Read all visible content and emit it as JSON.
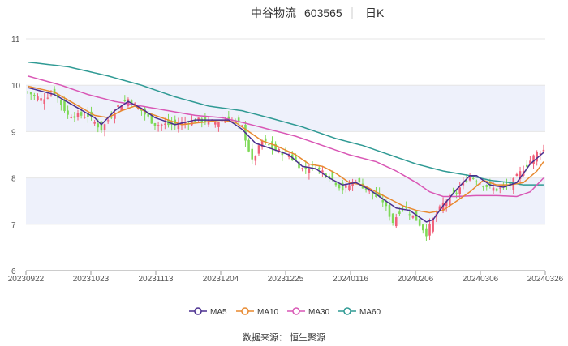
{
  "header": {
    "stock_name": "中谷物流",
    "stock_code": "603565",
    "period": "日K"
  },
  "source": "数据来源： 恒生聚源",
  "chart_data": {
    "type": "candlestick",
    "ylim": [
      6,
      11
    ],
    "yticks": [
      "6",
      "7",
      "8",
      "9",
      "10",
      "11"
    ],
    "xticks": [
      "20230922",
      "20231023",
      "20231113",
      "20231204",
      "20231225",
      "20240116",
      "20240206",
      "20240306",
      "20240326"
    ],
    "colors": {
      "up": "#f0607a",
      "down": "#7ed957",
      "MA5": "#4a2f8f",
      "MA10": "#e8892f",
      "MA30": "#d957b5",
      "MA60": "#2f9a94",
      "band": "#eef1fb",
      "grid": "#e6e6e6"
    },
    "legend": [
      {
        "name": "MA5",
        "color": "#4a2f8f"
      },
      {
        "name": "MA10",
        "color": "#e8892f"
      },
      {
        "name": "MA30",
        "color": "#d957b5"
      },
      {
        "name": "MA60",
        "color": "#2f9a94"
      }
    ],
    "anchors": {
      "close": [
        [
          0,
          9.85
        ],
        [
          4,
          9.7
        ],
        [
          8,
          9.85
        ],
        [
          12,
          9.35
        ],
        [
          18,
          9.35
        ],
        [
          22,
          9.05
        ],
        [
          27,
          9.55
        ],
        [
          30,
          9.7
        ],
        [
          34,
          9.45
        ],
        [
          38,
          9.15
        ],
        [
          44,
          9.15
        ],
        [
          50,
          9.25
        ],
        [
          56,
          9.2
        ],
        [
          60,
          9.3
        ],
        [
          64,
          9.1
        ],
        [
          67,
          8.35
        ],
        [
          70,
          8.8
        ],
        [
          74,
          8.6
        ],
        [
          78,
          8.5
        ],
        [
          82,
          8.2
        ],
        [
          86,
          8.25
        ],
        [
          90,
          8.05
        ],
        [
          94,
          7.75
        ],
        [
          98,
          7.95
        ],
        [
          102,
          7.7
        ],
        [
          106,
          7.5
        ],
        [
          109,
          7.05
        ],
        [
          112,
          7.4
        ],
        [
          116,
          7.1
        ],
        [
          119,
          6.8
        ],
        [
          121,
          7.1
        ],
        [
          124,
          7.45
        ],
        [
          128,
          7.7
        ],
        [
          132,
          8.05
        ],
        [
          136,
          7.85
        ],
        [
          140,
          7.75
        ],
        [
          144,
          7.85
        ],
        [
          148,
          8.2
        ],
        [
          152,
          8.55
        ],
        [
          154,
          8.6
        ]
      ],
      "MA5": [
        [
          0,
          9.95
        ],
        [
          8,
          9.8
        ],
        [
          14,
          9.55
        ],
        [
          20,
          9.3
        ],
        [
          22,
          9.15
        ],
        [
          26,
          9.45
        ],
        [
          30,
          9.65
        ],
        [
          34,
          9.5
        ],
        [
          38,
          9.3
        ],
        [
          44,
          9.15
        ],
        [
          50,
          9.25
        ],
        [
          56,
          9.25
        ],
        [
          60,
          9.25
        ],
        [
          64,
          9.05
        ],
        [
          68,
          8.75
        ],
        [
          72,
          8.65
        ],
        [
          78,
          8.5
        ],
        [
          82,
          8.25
        ],
        [
          86,
          8.2
        ],
        [
          90,
          8.0
        ],
        [
          94,
          7.85
        ],
        [
          98,
          7.9
        ],
        [
          102,
          7.75
        ],
        [
          106,
          7.55
        ],
        [
          110,
          7.35
        ],
        [
          114,
          7.3
        ],
        [
          117,
          7.15
        ],
        [
          119,
          7.05
        ],
        [
          121,
          7.1
        ],
        [
          124,
          7.4
        ],
        [
          128,
          7.75
        ],
        [
          132,
          8.05
        ],
        [
          134,
          8.05
        ],
        [
          138,
          7.85
        ],
        [
          142,
          7.8
        ],
        [
          146,
          7.9
        ],
        [
          150,
          8.3
        ],
        [
          154,
          8.55
        ]
      ],
      "MA10": [
        [
          0,
          9.98
        ],
        [
          8,
          9.85
        ],
        [
          14,
          9.6
        ],
        [
          20,
          9.35
        ],
        [
          24,
          9.3
        ],
        [
          28,
          9.45
        ],
        [
          32,
          9.55
        ],
        [
          36,
          9.4
        ],
        [
          40,
          9.3
        ],
        [
          46,
          9.15
        ],
        [
          52,
          9.2
        ],
        [
          58,
          9.25
        ],
        [
          62,
          9.2
        ],
        [
          66,
          9.0
        ],
        [
          70,
          8.8
        ],
        [
          74,
          8.7
        ],
        [
          80,
          8.5
        ],
        [
          84,
          8.3
        ],
        [
          88,
          8.25
        ],
        [
          92,
          8.1
        ],
        [
          96,
          7.9
        ],
        [
          100,
          7.85
        ],
        [
          104,
          7.7
        ],
        [
          108,
          7.55
        ],
        [
          112,
          7.4
        ],
        [
          116,
          7.3
        ],
        [
          120,
          7.25
        ],
        [
          124,
          7.3
        ],
        [
          128,
          7.5
        ],
        [
          132,
          7.7
        ],
        [
          136,
          7.95
        ],
        [
          140,
          7.85
        ],
        [
          144,
          7.85
        ],
        [
          148,
          7.9
        ],
        [
          152,
          8.15
        ],
        [
          154,
          8.35
        ]
      ],
      "MA30": [
        [
          0,
          10.2
        ],
        [
          10,
          10.0
        ],
        [
          18,
          9.8
        ],
        [
          26,
          9.65
        ],
        [
          34,
          9.55
        ],
        [
          42,
          9.45
        ],
        [
          50,
          9.35
        ],
        [
          58,
          9.3
        ],
        [
          64,
          9.2
        ],
        [
          72,
          9.05
        ],
        [
          80,
          8.9
        ],
        [
          88,
          8.7
        ],
        [
          96,
          8.5
        ],
        [
          104,
          8.35
        ],
        [
          110,
          8.15
        ],
        [
          116,
          7.9
        ],
        [
          120,
          7.7
        ],
        [
          124,
          7.6
        ],
        [
          128,
          7.6
        ],
        [
          134,
          7.62
        ],
        [
          140,
          7.62
        ],
        [
          146,
          7.6
        ],
        [
          150,
          7.7
        ],
        [
          154,
          8.0
        ]
      ],
      "MA60": [
        [
          0,
          10.5
        ],
        [
          12,
          10.4
        ],
        [
          24,
          10.2
        ],
        [
          34,
          10.0
        ],
        [
          44,
          9.75
        ],
        [
          54,
          9.55
        ],
        [
          64,
          9.45
        ],
        [
          72,
          9.3
        ],
        [
          82,
          9.1
        ],
        [
          92,
          8.85
        ],
        [
          100,
          8.7
        ],
        [
          108,
          8.5
        ],
        [
          116,
          8.3
        ],
        [
          124,
          8.15
        ],
        [
          132,
          8.05
        ],
        [
          138,
          7.95
        ],
        [
          144,
          7.9
        ],
        [
          148,
          7.85
        ],
        [
          154,
          7.85
        ]
      ]
    }
  }
}
